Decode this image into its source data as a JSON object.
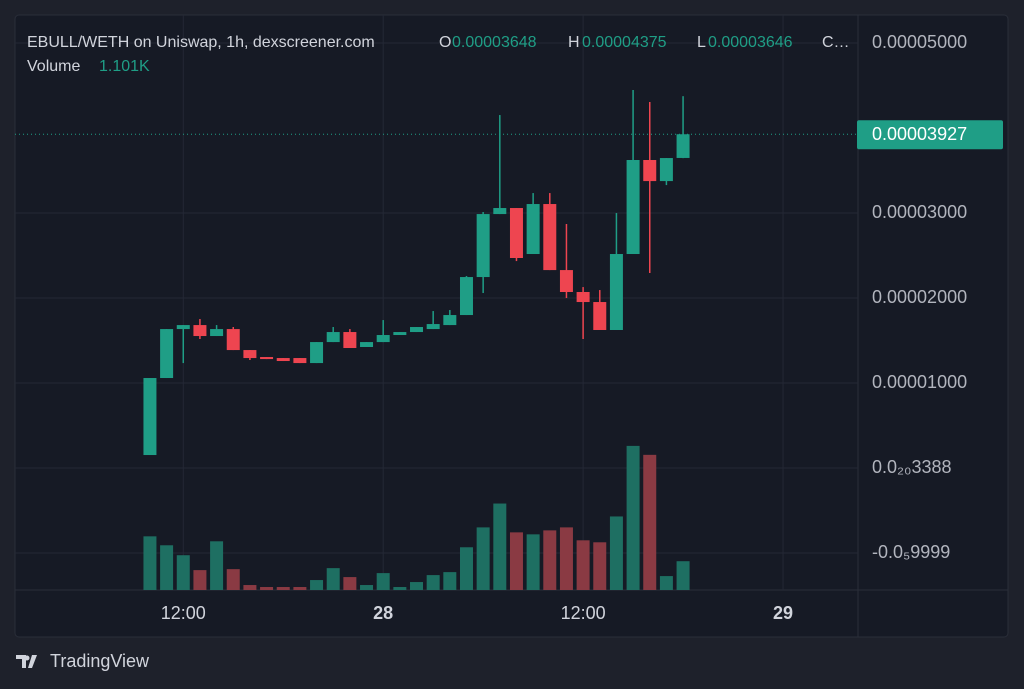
{
  "chart_data": {
    "type": "candlestick",
    "title": "EBULL/WETH on Uniswap, 1h, dexscreener.com",
    "header": {
      "open_label": "O",
      "open": "0.00003648",
      "high_label": "H",
      "high": "0.00004375",
      "low_label": "L",
      "low": "0.00003646",
      "close_label": "C…",
      "volume_label": "Volume",
      "volume": "1.101K"
    },
    "brand": "TradingView",
    "x": [
      0,
      1,
      2,
      3,
      4,
      5,
      6,
      7,
      8,
      9,
      10,
      11,
      12,
      13,
      14,
      15,
      16,
      17,
      18,
      19,
      20,
      21,
      22,
      23,
      24,
      25,
      26,
      27,
      28,
      29,
      30,
      31,
      32
    ],
    "xlim": [
      -8.1,
      42.5
    ],
    "xticks": [
      {
        "value": 2,
        "label": "12:00"
      },
      {
        "value": 14,
        "label": "28"
      },
      {
        "value": 26,
        "label": "12:00"
      },
      {
        "value": 38,
        "label": "29"
      }
    ],
    "ylim": [
      -1.435e-05,
      5.33e-05
    ],
    "yticks": [
      {
        "value": 5e-05,
        "label": "0.00005000"
      },
      {
        "value": 3e-05,
        "label": "0.00003000"
      },
      {
        "value": 2e-05,
        "label": "0.00002000"
      },
      {
        "value": 1e-05,
        "label": "0.00001000"
      },
      {
        "value": 3.388e-21,
        "label": "0.0₂₀3388"
      },
      {
        "value": -9.9999e-06,
        "label": "-0.0₅9999"
      }
    ],
    "grid": true,
    "up_color": "#1f9e86",
    "down_color": "#ee4550",
    "volume_up_color": "#1e6f62",
    "volume_down_color": "#8a3a43",
    "last_price": {
      "value": 3.927e-05,
      "label": "0.00003927"
    },
    "open": [
      1.53e-06,
      1.059e-05,
      1.635e-05,
      1.682e-05,
      1.553e-05,
      1.635e-05,
      1.388e-05,
      1.306e-05,
      1.294e-05,
      1.294e-05,
      1.235e-05,
      1.482e-05,
      1.6e-05,
      1.424e-05,
      1.482e-05,
      1.565e-05,
      1.6e-05,
      1.635e-05,
      1.682e-05,
      1.8e-05,
      2.247e-05,
      2.988e-05,
      3.059e-05,
      2.518e-05,
      3.106e-05,
      2.329e-05,
      2.071e-05,
      1.953e-05,
      1.624e-05,
      2.518e-05,
      3.624e-05,
      3.376e-05,
      3.648e-05
    ],
    "high": [
      1.059e-05,
      1.635e-05,
      1.682e-05,
      1.753e-05,
      1.682e-05,
      1.659e-05,
      1.388e-05,
      1.306e-05,
      1.294e-05,
      1.294e-05,
      1.482e-05,
      1.659e-05,
      1.635e-05,
      1.482e-05,
      1.741e-05,
      1.6e-05,
      1.659e-05,
      1.847e-05,
      1.859e-05,
      2.259e-05,
      3.012e-05,
      4.153e-05,
      3.059e-05,
      3.235e-05,
      3.235e-05,
      2.871e-05,
      2.129e-05,
      2.094e-05,
      3e-05,
      4.447e-05,
      4.306e-05,
      3.647e-05,
      4.375e-05
    ],
    "low": [
      1.53e-06,
      1.059e-05,
      1.235e-05,
      1.518e-05,
      1.553e-05,
      1.388e-05,
      1.271e-05,
      1.282e-05,
      1.259e-05,
      1.235e-05,
      1.235e-05,
      1.482e-05,
      1.412e-05,
      1.424e-05,
      1.482e-05,
      1.565e-05,
      1.6e-05,
      1.635e-05,
      1.682e-05,
      1.8e-05,
      2.059e-05,
      2.988e-05,
      2.435e-05,
      2.518e-05,
      2.329e-05,
      2e-05,
      1.518e-05,
      1.624e-05,
      1.624e-05,
      2.518e-05,
      2.294e-05,
      3.329e-05,
      3.646e-05
    ],
    "close": [
      1.059e-05,
      1.635e-05,
      1.682e-05,
      1.553e-05,
      1.635e-05,
      1.388e-05,
      1.294e-05,
      1.282e-05,
      1.259e-05,
      1.235e-05,
      1.482e-05,
      1.6e-05,
      1.412e-05,
      1.482e-05,
      1.565e-05,
      1.6e-05,
      1.659e-05,
      1.694e-05,
      1.8e-05,
      2.247e-05,
      2.988e-05,
      3.059e-05,
      2.471e-05,
      3.106e-05,
      2.329e-05,
      2.071e-05,
      1.953e-05,
      1.624e-05,
      2.518e-05,
      3.624e-05,
      3.376e-05,
      3.647e-05,
      3.927e-05
    ],
    "volume_lim": [
      0,
      13000
    ],
    "volume": [
      2052,
      1710,
      1330,
      760,
      1862,
      798,
      190,
      114,
      114,
      114,
      380,
      836,
      494,
      190,
      646,
      114,
      304,
      570,
      684,
      1634,
      2394,
      3306,
      2204,
      2128,
      2280,
      2394,
      1900,
      1824,
      2812,
      5510,
      5168,
      532,
      1101
    ]
  }
}
